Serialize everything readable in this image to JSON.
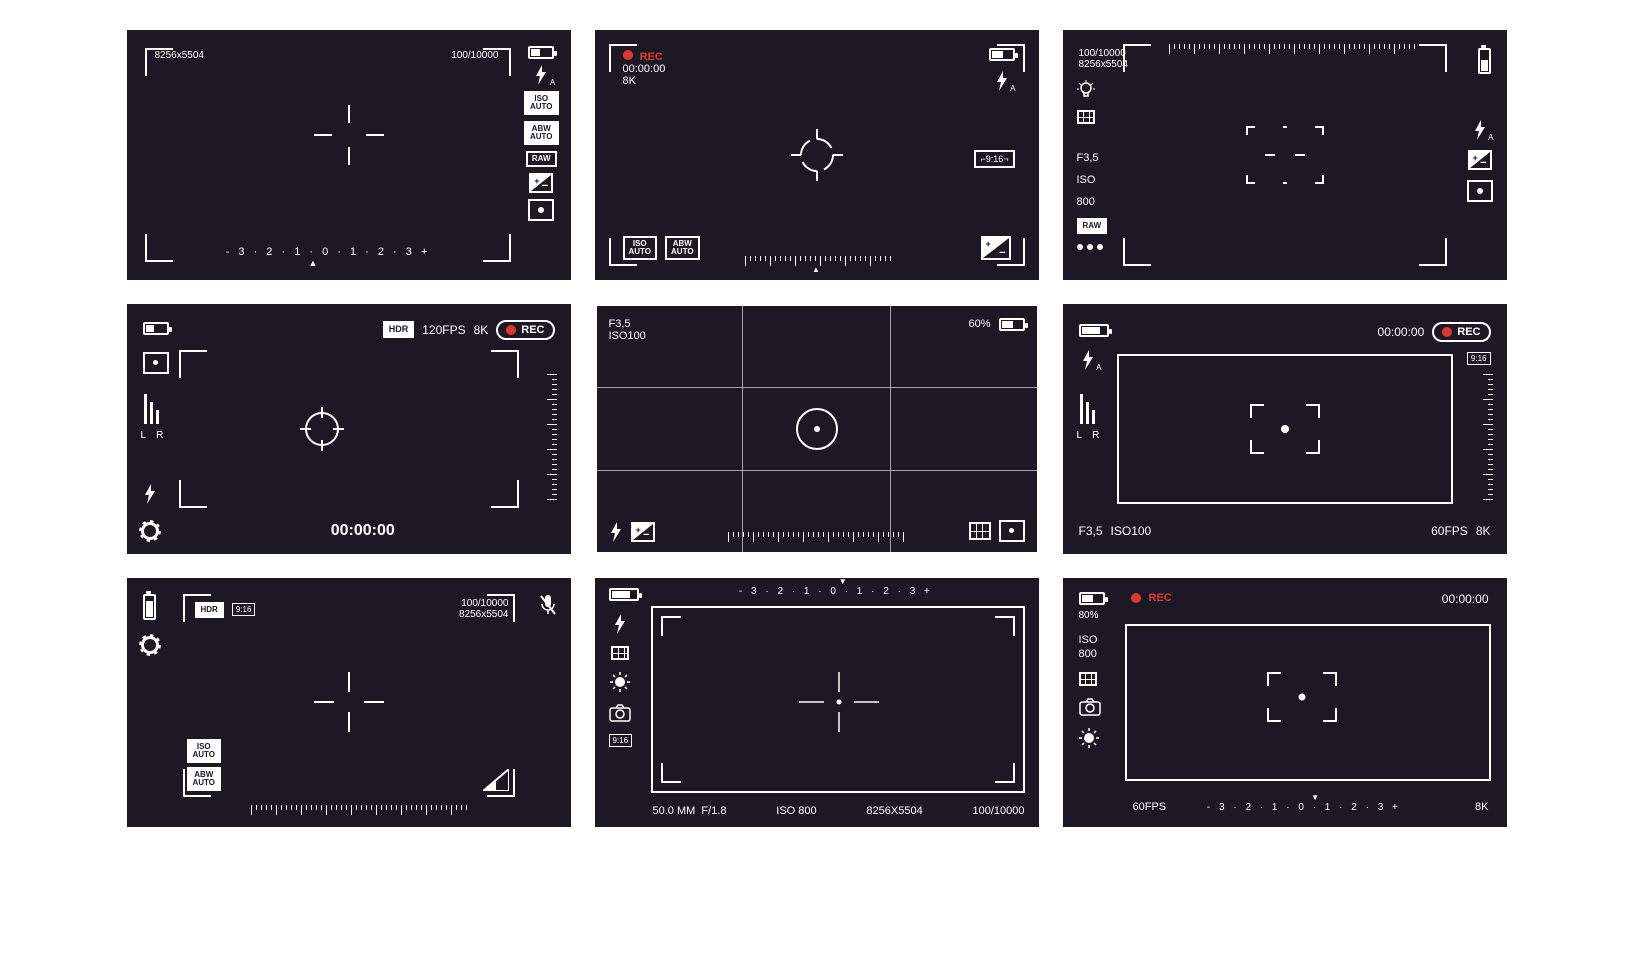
{
  "global": {
    "bg_color": "#1c1824",
    "fg_color": "#ffffff",
    "rec_color": "#e0362f",
    "ruler_tick_color": "#ffffff"
  },
  "ev_scale_text": "-  3 · 2 · 1 · 0 · 1 · 2 · 3  +",
  "vf1": {
    "resolution": "8256x5504",
    "shutter": "100/10000",
    "badges": [
      "ISO AUTO",
      "ABW AUTO",
      "RAW"
    ],
    "flash_mode": "A"
  },
  "vf2": {
    "rec_label": "REC",
    "timecode": "00:00:00",
    "format": "8K",
    "aspect": "9:16",
    "badges_bottom": [
      "ISO AUTO",
      "ABW AUTO"
    ],
    "flash_mode": "A"
  },
  "vf3": {
    "shutter": "100/10000",
    "resolution": "8256x5504",
    "aperture": "F3,5",
    "iso_label": "ISO",
    "iso_value": "800",
    "raw_badge": "RAW",
    "flash_mode": "A"
  },
  "vf4": {
    "hdr_badge": "HDR",
    "fps": "120FPS",
    "format": "8K",
    "rec_label": "REC",
    "lr_left": "L",
    "lr_right": "R",
    "timecode": "00:00:00"
  },
  "vf5": {
    "aperture": "F3,5",
    "iso": "ISO100",
    "brightness": "60%"
  },
  "vf6": {
    "timecode": "00:00:00",
    "rec_label": "REC",
    "aspect": "9:16",
    "lr_left": "L",
    "lr_right": "R",
    "aperture": "F3,5",
    "iso": "ISO100",
    "fps": "60FPS",
    "format": "8K",
    "flash_mode": "A"
  },
  "vf7": {
    "hdr_badge": "HDR",
    "aspect": "9:16",
    "shutter": "100/10000",
    "resolution": "8256x5504",
    "badges": [
      "ISO AUTO",
      "ABW AUTO"
    ]
  },
  "vf8": {
    "focal": "50.0 MM",
    "fstop": "F/1.8",
    "iso": "ISO 800",
    "resolution": "8256X5504",
    "shutter": "100/10000",
    "aspect": "9:16"
  },
  "vf9": {
    "brightness": "80%",
    "rec_label": "REC",
    "timecode": "00:00:00",
    "iso_label": "ISO",
    "iso_value": "800",
    "fps": "60FPS",
    "format": "8K"
  }
}
